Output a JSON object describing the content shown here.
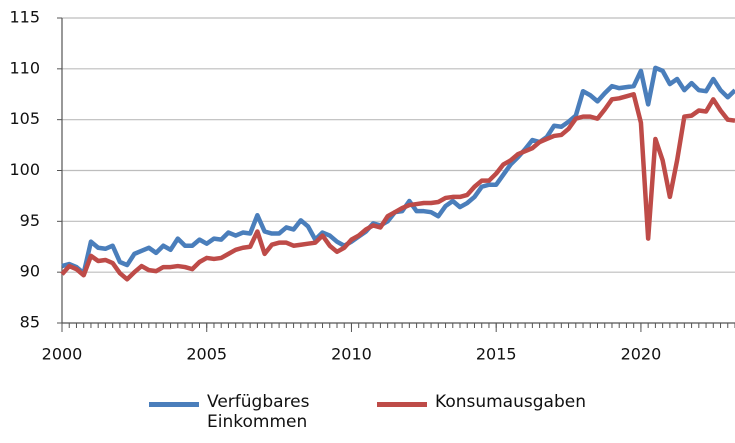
{
  "chart_data": {
    "type": "line",
    "x": [
      2000,
      2000.25,
      2000.5,
      2000.75,
      2001,
      2001.25,
      2001.5,
      2001.75,
      2002,
      2002.25,
      2002.5,
      2002.75,
      2003,
      2003.25,
      2003.5,
      2003.75,
      2004,
      2004.25,
      2004.5,
      2004.75,
      2005,
      2005.25,
      2005.5,
      2005.75,
      2006,
      2006.25,
      2006.5,
      2006.75,
      2007,
      2007.25,
      2007.5,
      2007.75,
      2008,
      2008.25,
      2008.5,
      2008.75,
      2009,
      2009.25,
      2009.5,
      2009.75,
      2010,
      2010.25,
      2010.5,
      2010.75,
      2011,
      2011.25,
      2011.5,
      2011.75,
      2012,
      2012.25,
      2012.5,
      2012.75,
      2013,
      2013.25,
      2013.5,
      2013.75,
      2014,
      2014.25,
      2014.5,
      2014.75,
      2015,
      2015.25,
      2015.5,
      2015.75,
      2016,
      2016.25,
      2016.5,
      2016.75,
      2017,
      2017.25,
      2017.5,
      2017.75,
      2018,
      2018.25,
      2018.5,
      2018.75,
      2019,
      2019.25,
      2019.5,
      2019.75,
      2020,
      2020.25,
      2020.5,
      2020.75,
      2021,
      2021.25,
      2021.5,
      2021.75,
      2022,
      2022.25,
      2022.5,
      2022.75,
      2023,
      2023.25
    ],
    "series": [
      {
        "name": "Verfügbares Einkommen",
        "color": "#4a7ebb",
        "values": [
          90.6,
          90.8,
          90.5,
          89.9,
          93.0,
          92.4,
          92.3,
          92.6,
          91.0,
          90.7,
          91.8,
          92.1,
          92.4,
          91.9,
          92.6,
          92.2,
          93.3,
          92.6,
          92.6,
          93.2,
          92.8,
          93.3,
          93.2,
          93.9,
          93.6,
          93.9,
          93.8,
          95.6,
          94.0,
          93.8,
          93.8,
          94.4,
          94.2,
          95.1,
          94.5,
          93.2,
          93.9,
          93.6,
          93.0,
          92.6,
          93.0,
          93.5,
          94.0,
          94.8,
          94.6,
          95.0,
          95.9,
          96.0,
          97.0,
          96.0,
          96.0,
          95.9,
          95.5,
          96.5,
          97.0,
          96.4,
          96.8,
          97.4,
          98.4,
          98.6,
          98.6,
          99.6,
          100.6,
          101.3,
          102.1,
          103.0,
          102.8,
          103.3,
          104.4,
          104.3,
          104.8,
          105.4,
          107.8,
          107.4,
          106.8,
          107.6,
          108.3,
          108.1,
          108.2,
          108.3,
          109.8,
          106.5,
          110.1,
          109.8,
          108.5,
          109.0,
          107.9,
          108.6,
          107.9,
          107.8,
          109.0,
          107.9,
          107.2,
          107.9
        ]
      },
      {
        "name": "Konsumausgaben",
        "color": "#be4b48",
        "values": [
          89.8,
          90.6,
          90.3,
          89.7,
          91.6,
          91.1,
          91.2,
          90.9,
          89.9,
          89.3,
          90.0,
          90.6,
          90.2,
          90.1,
          90.5,
          90.5,
          90.6,
          90.5,
          90.3,
          91.0,
          91.4,
          91.3,
          91.4,
          91.8,
          92.2,
          92.4,
          92.5,
          94.0,
          91.8,
          92.7,
          92.9,
          92.9,
          92.6,
          92.7,
          92.8,
          92.9,
          93.6,
          92.6,
          92.0,
          92.4,
          93.2,
          93.6,
          94.2,
          94.6,
          94.4,
          95.5,
          95.9,
          96.3,
          96.6,
          96.7,
          96.8,
          96.8,
          96.9,
          97.3,
          97.4,
          97.4,
          97.6,
          98.4,
          99.0,
          99.0,
          99.7,
          100.6,
          101.0,
          101.6,
          101.9,
          102.2,
          102.8,
          103.1,
          103.4,
          103.5,
          104.1,
          105.1,
          105.3,
          105.3,
          105.1,
          106.0,
          107.0,
          107.1,
          107.3,
          107.5,
          104.7,
          93.3,
          103.1,
          101.0,
          97.4,
          101.0,
          105.3,
          105.4,
          105.9,
          105.8,
          107.0,
          105.9,
          105.0,
          104.9
        ]
      }
    ],
    "xlim": [
      2000,
      2023.25
    ],
    "xticks": [
      2000,
      2005,
      2010,
      2015,
      2020
    ],
    "ylim": [
      85,
      115
    ],
    "yticks": [
      85,
      90,
      95,
      100,
      105,
      110,
      115
    ],
    "grid": true
  }
}
